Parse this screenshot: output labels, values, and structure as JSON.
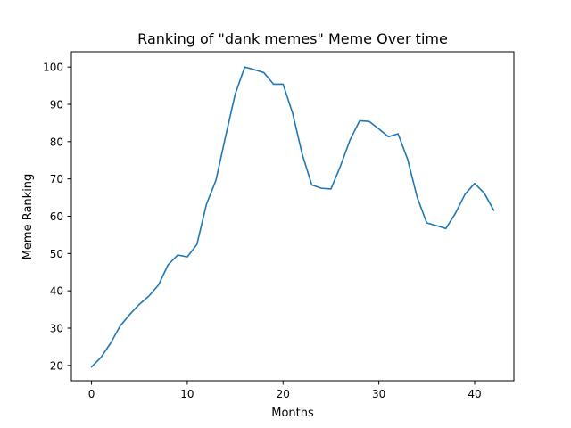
{
  "chart_data": {
    "type": "line",
    "title": "Ranking of \"dank memes\" Meme Over time",
    "xlabel": "Months",
    "ylabel": "Meme Ranking",
    "xlim": [
      -2.1,
      44.1
    ],
    "ylim": [
      15.9,
      104.1
    ],
    "xticks": [
      0,
      10,
      20,
      30,
      40
    ],
    "yticks": [
      20,
      30,
      40,
      50,
      60,
      70,
      80,
      90,
      100
    ],
    "grid": false,
    "legend": "none",
    "color": "#1f77b4",
    "series": [
      {
        "x": [
          0,
          1,
          2,
          3,
          4,
          5,
          6,
          7,
          8,
          9,
          10,
          11,
          12,
          13,
          14,
          15,
          16,
          17,
          18,
          19,
          20,
          21,
          22,
          23,
          24,
          25,
          26,
          27,
          28,
          29,
          30,
          31,
          32,
          33,
          34,
          35,
          36,
          37,
          38,
          39,
          40,
          41,
          42
        ],
        "values": [
          19.6,
          22.2,
          26.0,
          30.6,
          33.7,
          36.4,
          38.6,
          41.6,
          47.0,
          49.6,
          49.1,
          52.4,
          63.2,
          69.7,
          81.4,
          92.7,
          100.0,
          99.3,
          98.5,
          95.4,
          95.4,
          87.6,
          76.6,
          68.4,
          67.5,
          67.3,
          73.5,
          80.5,
          85.6,
          85.4,
          83.4,
          81.3,
          82.1,
          75.3,
          65.1,
          58.2,
          57.5,
          56.7,
          60.8,
          65.9,
          68.8,
          66.2,
          61.6
        ]
      }
    ]
  }
}
